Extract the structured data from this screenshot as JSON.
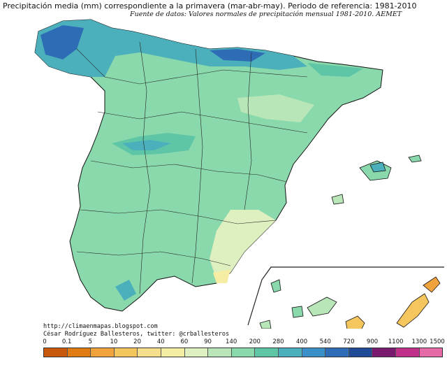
{
  "title": "Precipitación media (mm) correspondiente a la primavera (mar-abr-may). Periodo de referencia: 1981-2010",
  "source": "Fuente de datos: Valores normales de precipitación mensual 1981-2010. AEMET",
  "credits": {
    "url": "http://climaenmapas.blogspot.com",
    "author": "César Rodríguez Ballesteros, twitter: @crballesteros"
  },
  "legend": {
    "labels": [
      "0",
      "0.1",
      "5",
      "10",
      "20",
      "40",
      "60",
      "90",
      "140",
      "200",
      "280",
      "400",
      "540",
      "720",
      "900",
      "1100",
      "1300",
      "1500"
    ],
    "colors": [
      "#c8590c",
      "#e07a12",
      "#f0a23c",
      "#f6c65e",
      "#f7de8d",
      "#f6eda5",
      "#dff0c0",
      "#b8e6b8",
      "#8ad9ac",
      "#5ec6a6",
      "#4bb0bc",
      "#3b8fc8",
      "#2e6db5",
      "#1f4a96",
      "#7a1a6e",
      "#c0328a",
      "#e76aa8"
    ]
  },
  "map_colors": {
    "border": "#111111",
    "inset_frame": "#222222",
    "land_base": "#8ad9ac",
    "wet_north": "#4bb0bc",
    "very_wet": "#3b8fc8",
    "dry_south": "#dff0c0",
    "canary": "#f6c65e"
  }
}
